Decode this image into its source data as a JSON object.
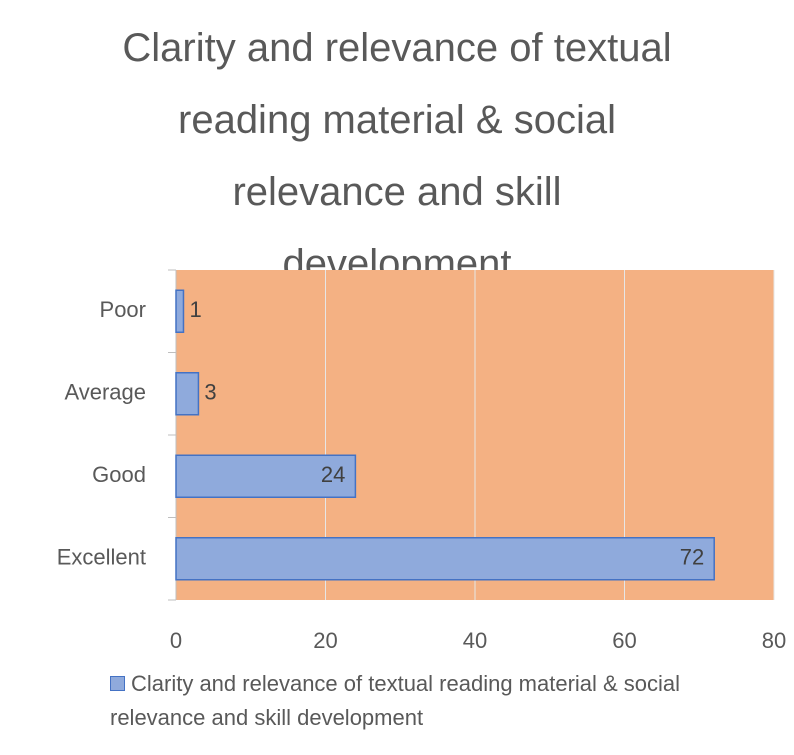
{
  "chart_data": {
    "type": "bar",
    "orientation": "horizontal",
    "title": "Clarity and relevance of textual reading material & social relevance and skill development",
    "categories": [
      "Excellent",
      "Good",
      "Average",
      "Poor"
    ],
    "series": [
      {
        "name": "Clarity and relevance of textual reading material & social relevance and skill development",
        "color": "#8faadc",
        "values": [
          72,
          24,
          3,
          1
        ]
      }
    ],
    "xlim": [
      0,
      80
    ],
    "xticks": [
      0,
      20,
      40,
      60,
      80
    ],
    "grid": true,
    "plot_background": "#f4b183",
    "legend": "bottom"
  }
}
